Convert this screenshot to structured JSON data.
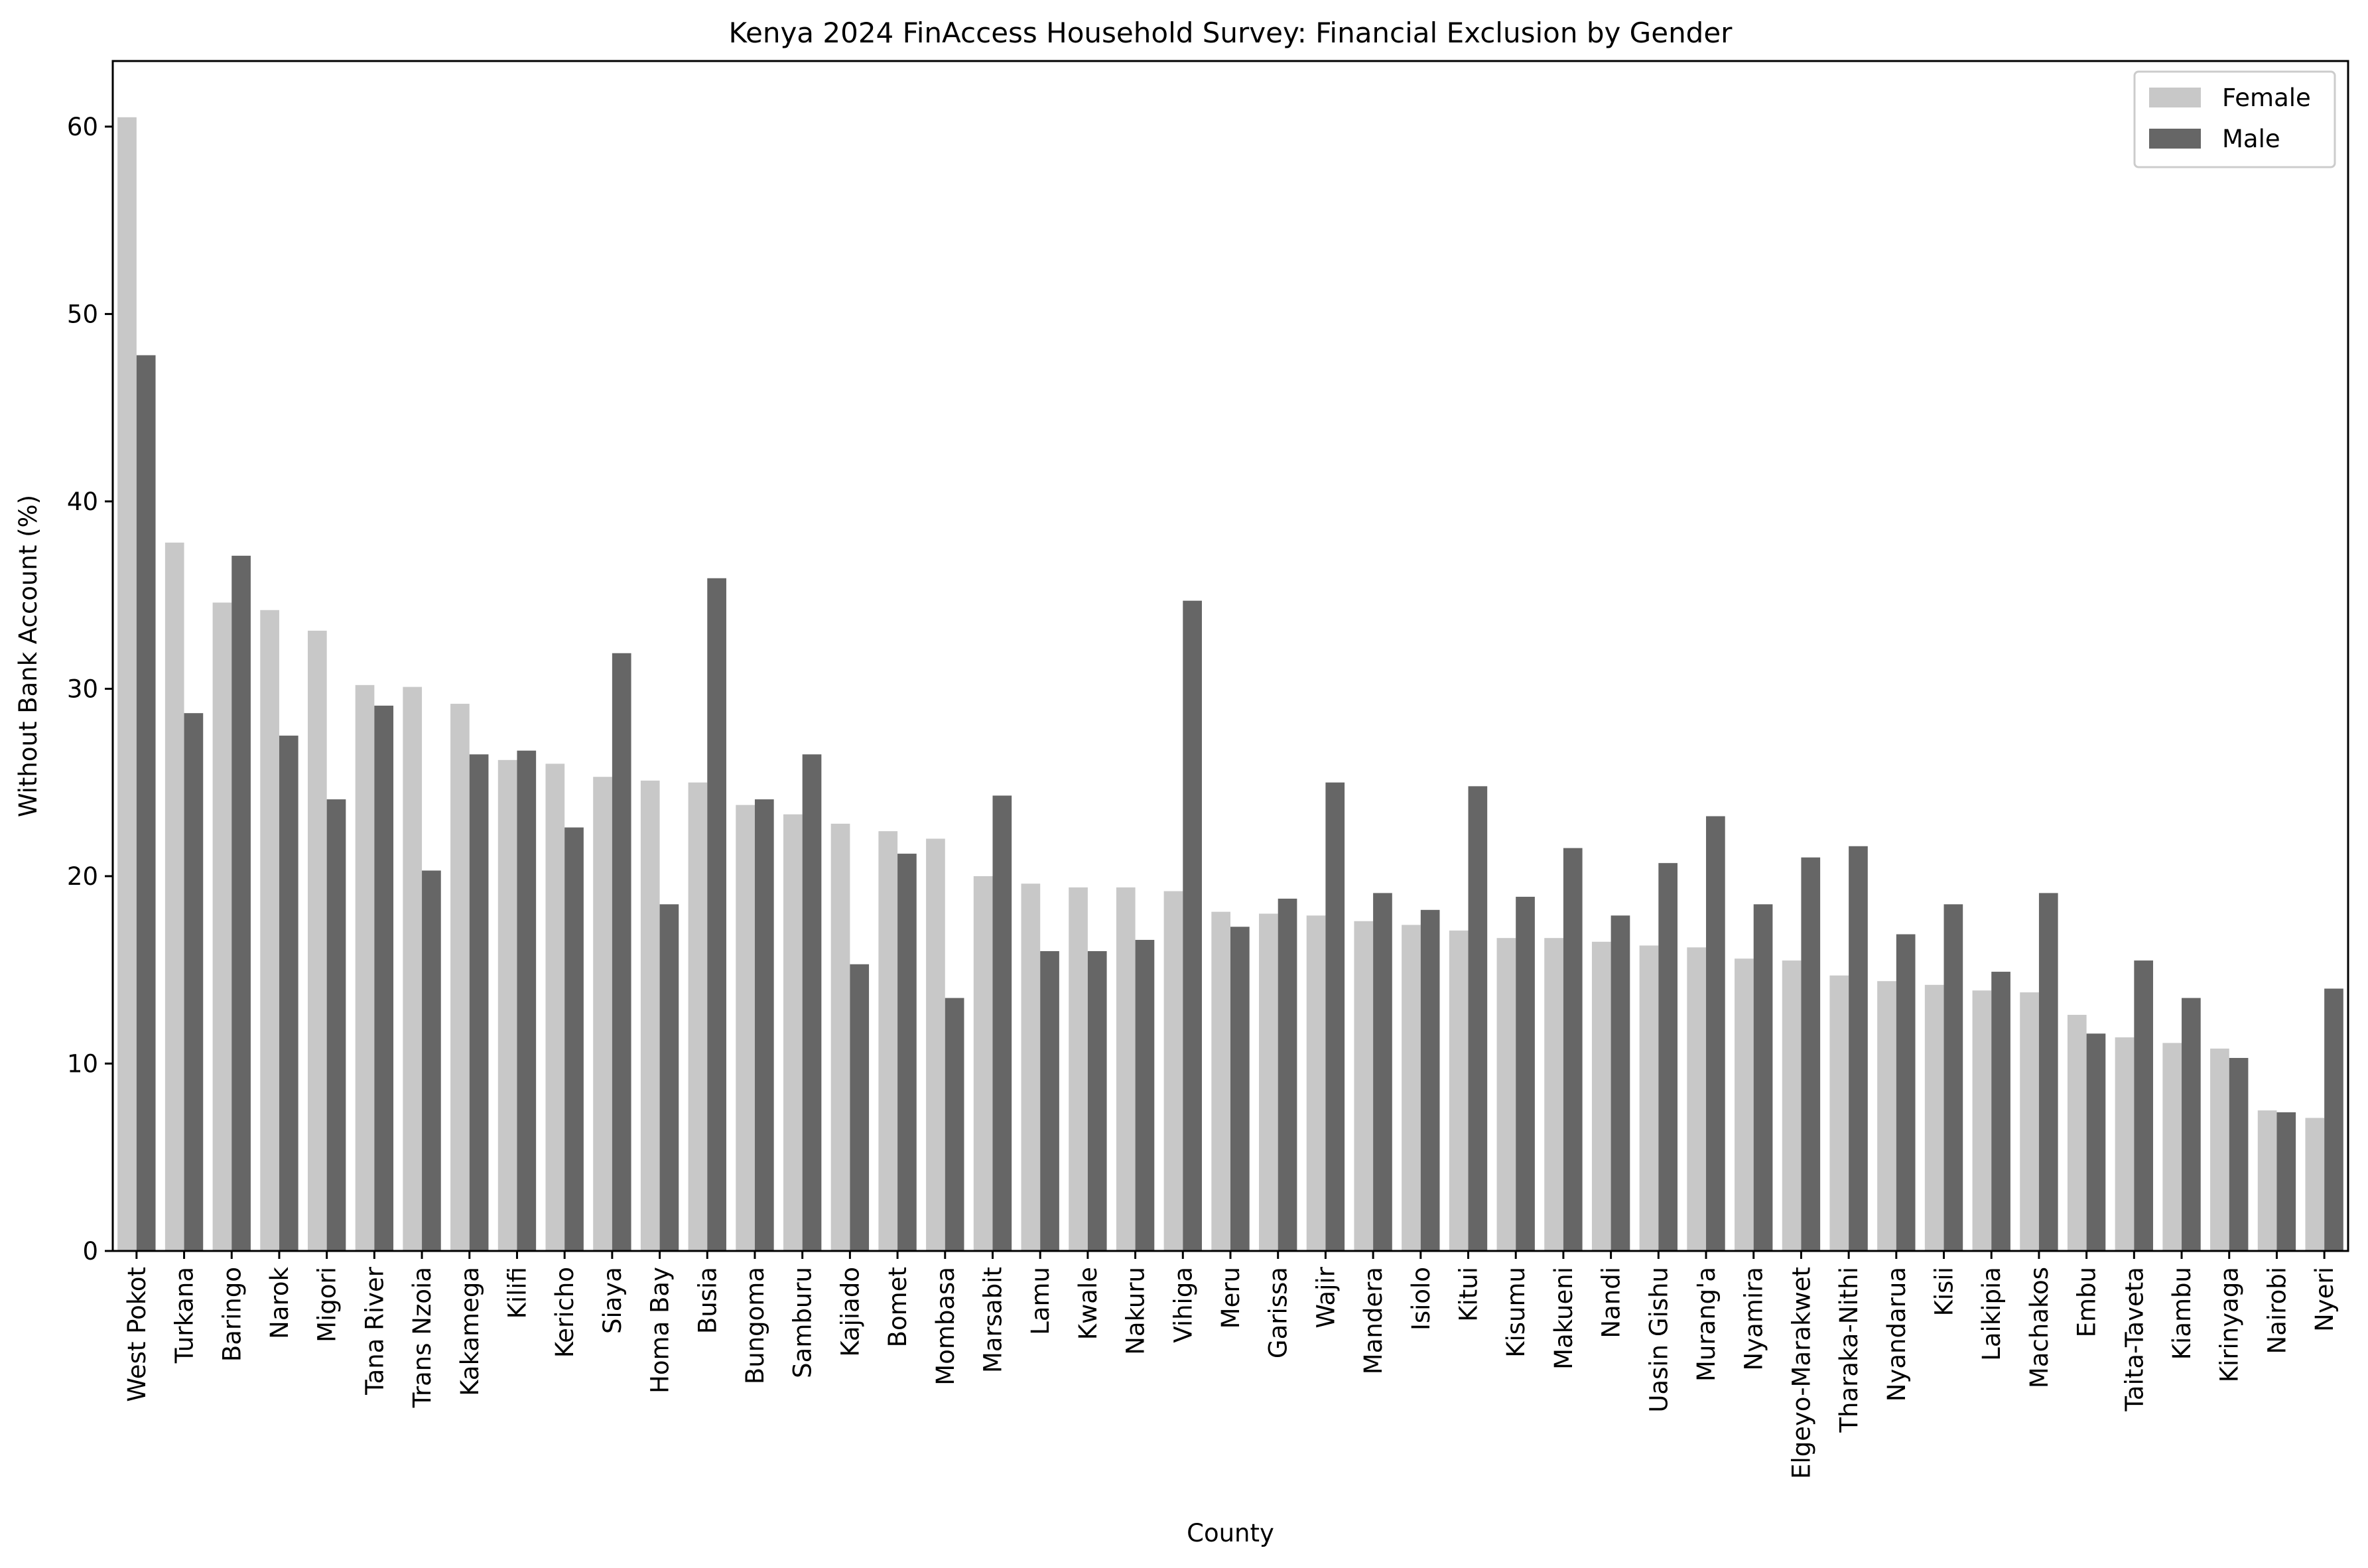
{
  "chart_data": {
    "type": "bar",
    "title": "Kenya 2024 FinAccess Household Survey: Financial Exclusion by Gender",
    "xlabel": "County",
    "ylabel": "Without Bank Account (%)",
    "ylim": [
      0,
      63.5
    ],
    "yticks": [
      0,
      10,
      20,
      30,
      40,
      50,
      60
    ],
    "grid": false,
    "legend_position": "top-right",
    "categories": [
      "West Pokot",
      "Turkana",
      "Baringo",
      "Narok",
      "Migori",
      "Tana River",
      "Trans Nzoia",
      "Kakamega",
      "Kilifi",
      "Kericho",
      "Siaya",
      "Homa Bay",
      "Busia",
      "Bungoma",
      "Samburu",
      "Kajiado",
      "Bomet",
      "Mombasa",
      "Marsabit",
      "Lamu",
      "Kwale",
      "Nakuru",
      "Vihiga",
      "Meru",
      "Garissa",
      "Wajir",
      "Mandera",
      "Isiolo",
      "Kitui",
      "Kisumu",
      "Makueni",
      "Nandi",
      "Uasin Gishu",
      "Murang'a",
      "Nyamira",
      "Elgeyo-Marakwet",
      "Tharaka-Nithi",
      "Nyandarua",
      "Kisii",
      "Laikipia",
      "Machakos",
      "Embu",
      "Taita-Taveta",
      "Kiambu",
      "Kirinyaga",
      "Nairobi",
      "Nyeri"
    ],
    "series": [
      {
        "name": "Female",
        "color": "#c8c8c8",
        "values": [
          60.5,
          37.8,
          34.6,
          34.2,
          33.1,
          30.2,
          30.1,
          29.2,
          26.2,
          26.0,
          25.3,
          25.1,
          25.0,
          23.8,
          23.3,
          22.8,
          22.4,
          22.0,
          20.0,
          19.6,
          19.4,
          19.4,
          19.2,
          18.1,
          18.0,
          17.9,
          17.6,
          17.4,
          17.1,
          16.7,
          16.7,
          16.5,
          16.3,
          16.2,
          15.6,
          15.5,
          14.7,
          14.4,
          14.2,
          13.9,
          13.8,
          12.6,
          11.4,
          11.1,
          10.8,
          7.5,
          7.1
        ]
      },
      {
        "name": "Male",
        "color": "#666666",
        "values": [
          47.8,
          28.7,
          37.1,
          27.5,
          24.1,
          29.1,
          20.3,
          26.5,
          26.7,
          22.6,
          31.9,
          18.5,
          35.9,
          24.1,
          26.5,
          15.3,
          21.2,
          13.5,
          24.3,
          16.0,
          16.0,
          16.6,
          34.7,
          17.3,
          18.8,
          25.0,
          19.1,
          18.2,
          24.8,
          18.9,
          21.5,
          17.9,
          20.7,
          23.2,
          18.5,
          21.0,
          21.6,
          16.9,
          18.5,
          14.9,
          19.1,
          11.6,
          15.5,
          13.5,
          10.3,
          7.4,
          14.0
        ]
      }
    ]
  }
}
